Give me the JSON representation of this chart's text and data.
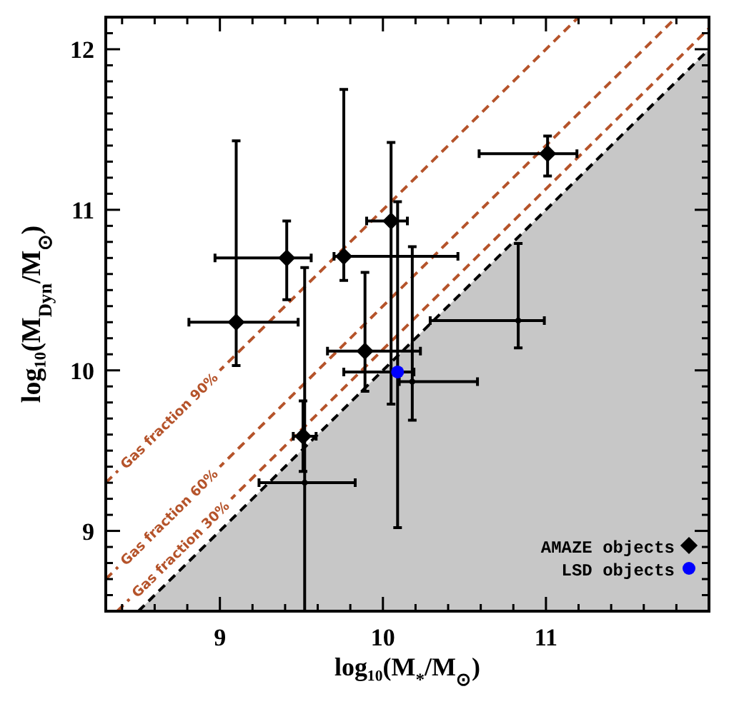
{
  "chart_data": {
    "type": "scatter",
    "xlabel": "log₁₀(M$_{*}$/M$_{⊙}$)",
    "ylabel": "log₁₀(M$_{Dyn}$/M$_{⊙}$)",
    "xlim": [
      8.3,
      12
    ],
    "ylim": [
      8.5,
      12.2
    ],
    "xticks": [
      {
        "value": 8.4,
        "label": null
      },
      {
        "value": 8.6,
        "label": null
      },
      {
        "value": 8.8,
        "label": null
      },
      9,
      {
        "value": 9.2,
        "label": null
      },
      {
        "value": 9.4,
        "label": null
      },
      {
        "value": 9.6,
        "label": null
      },
      {
        "value": 9.8,
        "label": null
      },
      10,
      {
        "value": 10.2,
        "label": null
      },
      {
        "value": 10.4,
        "label": null
      },
      {
        "value": 10.6,
        "label": null
      },
      {
        "value": 10.8,
        "label": null
      },
      11,
      {
        "value": 11.2,
        "label": null
      },
      {
        "value": 11.4,
        "label": null
      },
      {
        "value": 11.6,
        "label": null
      },
      {
        "value": 11.8,
        "label": null
      }
    ],
    "yticks": [
      {
        "value": 8.6,
        "label": null
      },
      {
        "value": 8.7,
        "label": null
      },
      {
        "value": 8.8,
        "label": null
      },
      {
        "value": 8.9,
        "label": null
      },
      9,
      {
        "value": 9.1,
        "label": null
      },
      {
        "value": 9.2,
        "label": null
      },
      {
        "value": 9.3,
        "label": null
      },
      {
        "value": 9.4,
        "label": null
      },
      {
        "value": 9.5,
        "label": null
      },
      {
        "value": 9.6,
        "label": null
      },
      {
        "value": 9.7,
        "label": null
      },
      {
        "value": 9.8,
        "label": null
      },
      {
        "value": 9.9,
        "label": null
      },
      10,
      {
        "value": 10.1,
        "label": null
      },
      {
        "value": 10.2,
        "label": null
      },
      {
        "value": 10.3,
        "label": null
      },
      {
        "value": 10.4,
        "label": null
      },
      {
        "value": 10.5,
        "label": null
      },
      {
        "value": 10.6,
        "label": null
      },
      {
        "value": 10.7,
        "label": null
      },
      {
        "value": 10.8,
        "label": null
      },
      {
        "value": 10.9,
        "label": null
      },
      11,
      {
        "value": 11.1,
        "label": null
      },
      {
        "value": 11.2,
        "label": null
      },
      {
        "value": 11.3,
        "label": null
      },
      {
        "value": 11.4,
        "label": null
      },
      {
        "value": 11.5,
        "label": null
      },
      {
        "value": 11.6,
        "label": null
      },
      {
        "value": 11.7,
        "label": null
      },
      {
        "value": 11.8,
        "label": null
      },
      {
        "value": 11.9,
        "label": null
      },
      12,
      {
        "value": 12.1,
        "label": null
      }
    ],
    "grid": false,
    "legend": "bottom right",
    "series": [
      {
        "type": "area",
        "color": "#000000",
        "line_style": "dashed",
        "x": [
          8.5,
          12
        ],
        "values": [
          8.5,
          12
        ]
      },
      {
        "type": "line",
        "name": "Gas fraction 90%",
        "color": "#b5532a",
        "line_style": "dashed",
        "x": [
          8.3,
          11.2
        ],
        "values": [
          9.3,
          12.2
        ]
      },
      {
        "type": "line",
        "name": "Gas fraction 60%",
        "color": "#b5532a",
        "line_style": "dashed",
        "x": [
          8.3,
          11.8
        ],
        "values": [
          8.7,
          12.2
        ]
      },
      {
        "type": "line",
        "name": "Gas fraction 30%",
        "color": "#b5532a",
        "line_style": "dashed",
        "x": [
          8.37,
          12
        ],
        "values": [
          8.5,
          12.13
        ]
      },
      {
        "color": "#000000",
        "x": [
          9.52,
          10.83,
          10.18
        ],
        "values": [
          9.3,
          10.31,
          9.93
        ],
        "errors": [
          [
            8.5,
            10.64
          ],
          [
            10.14,
            10.79
          ],
          [
            9.69,
            10.77
          ]
        ],
        "xerrors": [
          [
            9.24,
            9.83
          ],
          [
            10.29,
            10.99
          ],
          [
            10.1,
            10.58
          ]
        ]
      },
      {
        "name": "AMAZE objects",
        "color": "#000000",
        "marker": "diamond",
        "x": [
          9.1,
          9.41,
          9.76,
          10.05,
          9.89,
          9.51,
          11.01
        ],
        "values": [
          10.3,
          10.7,
          10.71,
          10.93,
          10.12,
          9.59,
          11.35
        ],
        "errors": [
          [
            10.03,
            11.43
          ],
          [
            10.44,
            10.93
          ],
          [
            10.56,
            11.75
          ],
          [
            9.79,
            11.42
          ],
          [
            9.87,
            10.61
          ],
          [
            9.37,
            9.81
          ],
          [
            11.21,
            11.46
          ]
        ],
        "xerrors": [
          [
            8.81,
            9.48
          ],
          [
            8.97,
            9.56
          ],
          [
            9.7,
            10.46
          ],
          [
            9.9,
            10.15
          ],
          [
            9.66,
            10.23
          ],
          [
            9.45,
            9.59
          ],
          [
            10.59,
            11.19
          ]
        ]
      },
      {
        "name": "LSD objects",
        "color": "#0000ff",
        "marker": "circle",
        "x": [
          10.09
        ],
        "values": [
          9.99
        ],
        "errors": [
          [
            9.02,
            11.05
          ]
        ],
        "xerrors": [
          [
            9.76,
            10.19
          ]
        ]
      }
    ]
  }
}
